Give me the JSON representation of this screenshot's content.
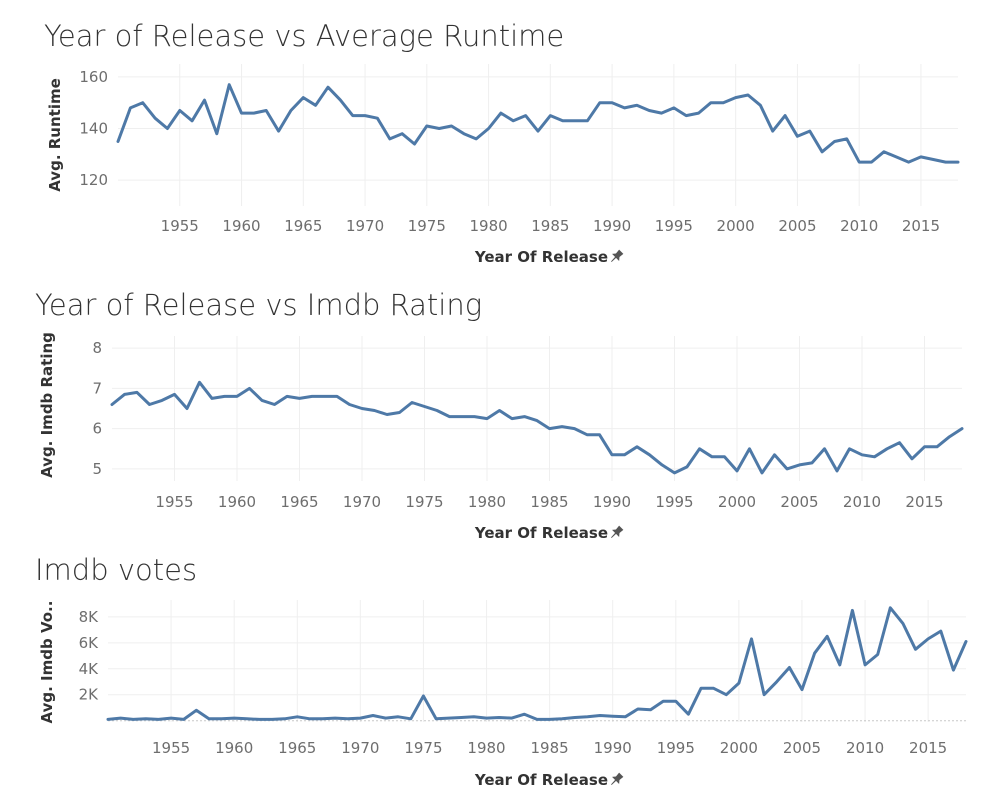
{
  "chart_data": [
    {
      "type": "line",
      "title": "Year of Release vs Average Runtime",
      "xlabel": "Year Of Release",
      "ylabel": "Avg. Runtime",
      "x_ticks": [
        "1955",
        "1960",
        "1965",
        "1970",
        "1975",
        "1980",
        "1985",
        "1990",
        "1995",
        "2000",
        "2005",
        "2010",
        "2015"
      ],
      "y_ticks": [
        "120",
        "140",
        "160"
      ],
      "xlim": [
        1950,
        2018
      ],
      "ylim": [
        110,
        165
      ],
      "line_color": "#4e79a7",
      "grid": true,
      "series": [
        {
          "x": [
            1950,
            1951,
            1952,
            1953,
            1954,
            1955,
            1956,
            1957,
            1958,
            1959,
            1960,
            1961,
            1962,
            1963,
            1964,
            1965,
            1966,
            1967,
            1968,
            1969,
            1970,
            1971,
            1972,
            1973,
            1974,
            1975,
            1976,
            1977,
            1978,
            1979,
            1980,
            1981,
            1982,
            1983,
            1984,
            1985,
            1986,
            1987,
            1988,
            1989,
            1990,
            1991,
            1992,
            1993,
            1994,
            1995,
            1996,
            1997,
            1998,
            1999,
            2000,
            2001,
            2002,
            2003,
            2004,
            2005,
            2006,
            2007,
            2008,
            2009,
            2010,
            2011,
            2012,
            2013,
            2014,
            2015,
            2016,
            2017,
            2018
          ],
          "values": [
            135,
            148,
            150,
            144,
            140,
            147,
            143,
            151,
            138,
            157,
            146,
            146,
            147,
            139,
            147,
            152,
            149,
            156,
            151,
            145,
            145,
            144,
            136,
            138,
            134,
            141,
            140,
            141,
            138,
            136,
            140,
            146,
            143,
            145,
            139,
            145,
            143,
            143,
            143,
            150,
            150,
            148,
            149,
            147,
            146,
            148,
            145,
            146,
            150,
            150,
            152,
            153,
            149,
            139,
            145,
            137,
            139,
            131,
            135,
            136,
            127,
            127,
            131,
            129,
            127,
            129,
            128,
            127,
            127
          ]
        }
      ]
    },
    {
      "type": "line",
      "title": "Year of Release vs Imdb Rating",
      "xlabel": "Year Of Release",
      "ylabel": "Avg. Imdb Rating",
      "x_ticks": [
        "1955",
        "1960",
        "1965",
        "1970",
        "1975",
        "1980",
        "1985",
        "1990",
        "1995",
        "2000",
        "2005",
        "2010",
        "2015"
      ],
      "y_ticks": [
        "5",
        "6",
        "7",
        "8"
      ],
      "xlim": [
        1950,
        2018
      ],
      "ylim": [
        4.7,
        8.3
      ],
      "line_color": "#4e79a7",
      "grid": true,
      "series": [
        {
          "x": [
            1950,
            1951,
            1952,
            1953,
            1954,
            1955,
            1956,
            1957,
            1958,
            1959,
            1960,
            1961,
            1962,
            1963,
            1964,
            1965,
            1966,
            1967,
            1968,
            1969,
            1970,
            1971,
            1972,
            1973,
            1974,
            1975,
            1976,
            1977,
            1978,
            1979,
            1980,
            1981,
            1982,
            1983,
            1984,
            1985,
            1986,
            1987,
            1988,
            1989,
            1990,
            1991,
            1992,
            1993,
            1994,
            1995,
            1996,
            1997,
            1998,
            1999,
            2000,
            2001,
            2002,
            2003,
            2004,
            2005,
            2006,
            2007,
            2008,
            2009,
            2010,
            2011,
            2012,
            2013,
            2014,
            2015,
            2016,
            2017,
            2018
          ],
          "values": [
            6.6,
            6.85,
            6.9,
            6.6,
            6.7,
            6.85,
            6.5,
            7.15,
            6.75,
            6.8,
            6.8,
            7.0,
            6.7,
            6.6,
            6.8,
            6.75,
            6.8,
            6.8,
            6.8,
            6.6,
            6.5,
            6.45,
            6.35,
            6.4,
            6.65,
            6.55,
            6.45,
            6.3,
            6.3,
            6.3,
            6.25,
            6.45,
            6.25,
            6.3,
            6.2,
            6.0,
            6.05,
            6.0,
            5.85,
            5.85,
            5.35,
            5.35,
            5.55,
            5.35,
            5.1,
            4.9,
            5.05,
            5.5,
            5.3,
            5.3,
            4.95,
            5.5,
            4.9,
            5.35,
            5.0,
            5.1,
            5.15,
            5.5,
            4.95,
            5.5,
            5.35,
            5.3,
            5.5,
            5.65,
            5.25,
            5.55,
            5.55,
            5.8,
            6.0
          ]
        }
      ]
    },
    {
      "type": "line",
      "title": "Imdb votes",
      "xlabel": "Year Of Release",
      "ylabel": "Avg. Imdb Vo..",
      "x_ticks": [
        "1955",
        "1960",
        "1965",
        "1970",
        "1975",
        "1980",
        "1985",
        "1990",
        "1995",
        "2000",
        "2005",
        "2010",
        "2015"
      ],
      "y_ticks": [
        "2K",
        "4K",
        "6K",
        "8K"
      ],
      "xlim": [
        1950,
        2018
      ],
      "ylim": [
        -100,
        9300
      ],
      "line_color": "#4e79a7",
      "grid": true,
      "series": [
        {
          "x": [
            1950,
            1951,
            1952,
            1953,
            1954,
            1955,
            1956,
            1957,
            1958,
            1959,
            1960,
            1961,
            1962,
            1963,
            1964,
            1965,
            1966,
            1967,
            1968,
            1969,
            1970,
            1971,
            1972,
            1973,
            1974,
            1975,
            1976,
            1977,
            1978,
            1979,
            1980,
            1981,
            1982,
            1983,
            1984,
            1985,
            1986,
            1987,
            1988,
            1989,
            1990,
            1991,
            1992,
            1993,
            1994,
            1995,
            1996,
            1997,
            1998,
            1999,
            2000,
            2001,
            2002,
            2003,
            2004,
            2005,
            2006,
            2007,
            2008,
            2009,
            2010,
            2011,
            2012,
            2013,
            2014,
            2015,
            2016,
            2017,
            2018
          ],
          "values": [
            100,
            200,
            100,
            150,
            100,
            200,
            100,
            800,
            150,
            150,
            200,
            150,
            100,
            100,
            150,
            300,
            150,
            150,
            200,
            150,
            200,
            400,
            200,
            300,
            150,
            1900,
            150,
            200,
            250,
            300,
            200,
            250,
            200,
            500,
            100,
            100,
            150,
            250,
            300,
            400,
            350,
            300,
            900,
            850,
            1500,
            1500,
            500,
            2500,
            2500,
            2000,
            2900,
            6300,
            2000,
            3000,
            4100,
            2400,
            5200,
            6500,
            4300,
            8500,
            4300,
            5100,
            8700,
            7500,
            5500,
            6300,
            6900,
            3900,
            6100
          ]
        }
      ]
    }
  ]
}
